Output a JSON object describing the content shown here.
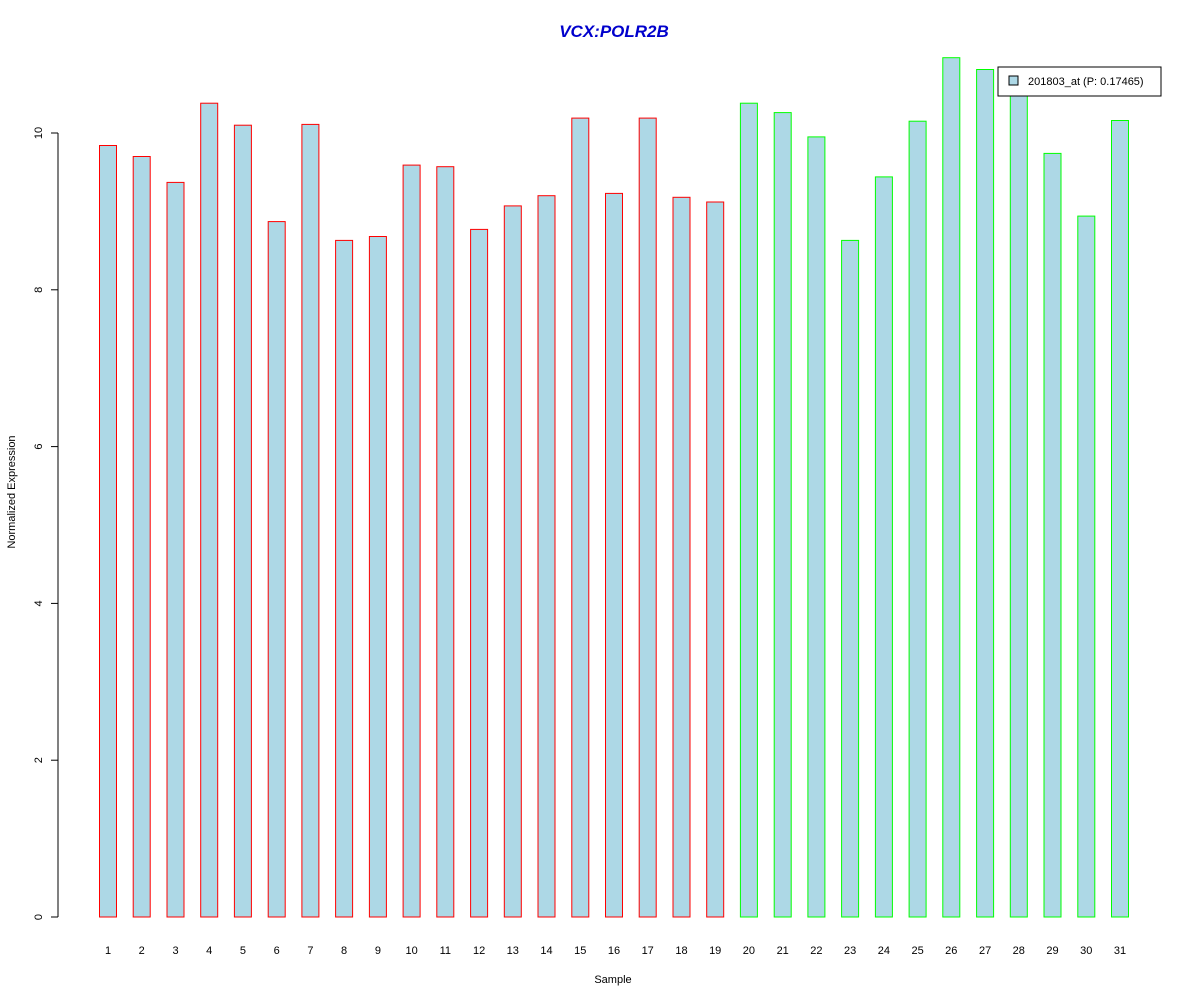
{
  "chart_data": {
    "type": "bar",
    "title": "VCX:POLR2B",
    "xlabel": "Sample",
    "ylabel": "Normalized Expression",
    "ylim": [
      0,
      11
    ],
    "yticks": [
      0,
      2,
      4,
      6,
      8,
      10
    ],
    "categories": [
      "1",
      "2",
      "3",
      "4",
      "5",
      "6",
      "7",
      "8",
      "9",
      "10",
      "11",
      "12",
      "13",
      "14",
      "15",
      "16",
      "17",
      "18",
      "19",
      "20",
      "21",
      "22",
      "23",
      "24",
      "25",
      "26",
      "27",
      "28",
      "29",
      "30",
      "31"
    ],
    "series": [
      {
        "name": "201803_at (P: 0.17465)",
        "fill": "#ADD8E6",
        "values": [
          9.84,
          9.7,
          9.37,
          10.38,
          10.1,
          8.87,
          10.11,
          8.63,
          8.68,
          9.59,
          9.57,
          8.77,
          9.07,
          9.2,
          10.19,
          9.23,
          10.19,
          9.18,
          9.12,
          10.38,
          10.26,
          9.95,
          8.63,
          9.44,
          10.15,
          10.96,
          10.81,
          10.56,
          9.74,
          8.94,
          10.16
        ]
      }
    ],
    "groups": [
      {
        "border_color": "#FF0000",
        "samples": [
          "1",
          "2",
          "3",
          "4",
          "5",
          "6",
          "7",
          "8",
          "9",
          "10",
          "11",
          "12",
          "13",
          "14",
          "15",
          "16",
          "17",
          "18",
          "19"
        ]
      },
      {
        "border_color": "#00FF00",
        "samples": [
          "20",
          "21",
          "22",
          "23",
          "24",
          "25",
          "26",
          "27",
          "28",
          "29",
          "30",
          "31"
        ]
      }
    ],
    "title_color": "#0000CC",
    "grid": false,
    "legend_position": "top-right"
  }
}
